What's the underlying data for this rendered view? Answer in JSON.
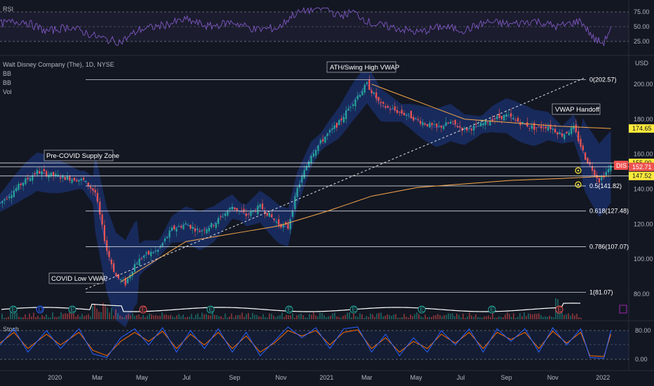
{
  "symbol": {
    "name": "Walt Disney Company (The), 1D, NYSE",
    "ticker": "DIS"
  },
  "currency": "USD",
  "indicators": {
    "bb1": "BB",
    "bb2": "BB",
    "vol": "Vol",
    "rsi": "RSI",
    "stoch": "Stoch"
  },
  "colors": {
    "bg": "#131722",
    "candle_up": "#26a69a",
    "candle_down": "#ef5350",
    "bb_fill": "#1e3a8a",
    "vwap": "#f7a74a",
    "rsi_line": "#7e57c2",
    "stoch_k": "#2962ff",
    "stoch_d": "#ff6d00"
  },
  "chart_data": [
    {
      "type": "line",
      "title": "Walt Disney Company (The), 1D, NYSE",
      "x_labels": [
        "2020",
        "Mar",
        "May",
        "Jul",
        "Sep",
        "Nov",
        "2021",
        "Mar",
        "May",
        "Jul",
        "Sep",
        "Nov",
        "2022"
      ],
      "y_ticks": [
        80.0,
        100.0,
        120.0,
        140.0,
        160.0,
        180.0,
        200.0
      ],
      "ylim": [
        72,
        212
      ],
      "series": [
        {
          "name": "DIS",
          "values": [
            [
              0,
              132
            ],
            [
              0.5,
              144
            ],
            [
              0.8,
              150
            ],
            [
              1.3,
              147
            ],
            [
              1.8,
              145
            ],
            [
              2.05,
              138
            ],
            [
              2.3,
              105
            ],
            [
              2.5,
              90
            ],
            [
              2.7,
              86
            ],
            [
              2.9,
              97
            ],
            [
              3.1,
              102
            ],
            [
              3.4,
              105
            ],
            [
              3.7,
              117
            ],
            [
              4.0,
              120
            ],
            [
              4.3,
              116
            ],
            [
              4.6,
              120
            ],
            [
              5.0,
              130
            ],
            [
              5.3,
              125
            ],
            [
              5.6,
              130
            ],
            [
              6.0,
              120
            ],
            [
              6.2,
              118
            ],
            [
              6.4,
              140
            ],
            [
              6.7,
              160
            ],
            [
              7.0,
              170
            ],
            [
              7.3,
              178
            ],
            [
              7.6,
              190
            ],
            [
              7.9,
              200
            ],
            [
              8.2,
              188
            ],
            [
              8.5,
              185
            ],
            [
              8.8,
              182
            ],
            [
              9.1,
              178
            ],
            [
              9.4,
              175
            ],
            [
              9.7,
              178
            ],
            [
              10.0,
              174
            ],
            [
              10.3,
              176
            ],
            [
              10.6,
              180
            ],
            [
              10.9,
              182
            ],
            [
              11.2,
              178
            ],
            [
              11.5,
              175
            ],
            [
              11.8,
              176
            ],
            [
              12.1,
              171
            ],
            [
              12.35,
              175
            ],
            [
              12.6,
              158
            ],
            [
              12.9,
              145
            ],
            [
              13.15,
              152.71
            ]
          ]
        }
      ],
      "vwap": {
        "name": "VWAP",
        "values": [
          [
            2.6,
            87
          ],
          [
            4.0,
            110
          ],
          [
            6.0,
            119
          ],
          [
            7.0,
            127
          ],
          [
            8.0,
            136
          ],
          [
            9.0,
            141
          ],
          [
            10.0,
            143
          ],
          [
            11.0,
            145
          ],
          [
            12.0,
            146
          ],
          [
            13.15,
            147.52
          ]
        ]
      },
      "vwap_ath": {
        "name": "ATH VWAP",
        "values": [
          [
            8.0,
            200
          ],
          [
            9.0,
            190
          ],
          [
            10.0,
            180
          ],
          [
            11.0,
            178
          ],
          [
            12.0,
            176
          ],
          [
            13.15,
            174.65
          ]
        ]
      },
      "last_price": "152.71",
      "price_tags": [
        {
          "value": "174.65",
          "color": "#ffeb3b",
          "text_color": "#131722"
        },
        {
          "value": "155.00",
          "color": "#ffeb3b",
          "text_color": "#131722"
        },
        {
          "value": "152.71",
          "color": "#ef5350",
          "text_color": "#ffffff"
        },
        {
          "value": "147.52",
          "color": "#ffeb3b",
          "text_color": "#131722"
        }
      ],
      "fib_levels": [
        {
          "ratio": "0",
          "value": 202.57,
          "label": "0(202.57)"
        },
        {
          "ratio": "0.5",
          "value": 141.82,
          "label": "0.5(141.82)"
        },
        {
          "ratio": "0.618",
          "value": 127.48,
          "label": "0.618(127.48)"
        },
        {
          "ratio": "0.786",
          "value": 107.07,
          "label": "0.786(107.07)"
        },
        {
          "ratio": "1",
          "value": 81.07,
          "label": "1(81.07)"
        }
      ],
      "horizontal_levels": [
        155.0,
        152.71,
        147.52
      ],
      "annotations": [
        {
          "text": "ATH/Swing High VWAP"
        },
        {
          "text": "VWAP Handoff"
        },
        {
          "text": "Pre-COVID Supply Zone"
        },
        {
          "text": "COVID Low VWAP"
        }
      ]
    },
    {
      "type": "line",
      "title": "RSI",
      "y_ticks": [
        25.0,
        50.0,
        75.0
      ],
      "ylim": [
        15,
        85
      ],
      "series": [
        {
          "name": "RSI",
          "values": [
            [
              0,
              55
            ],
            [
              0.5,
              60
            ],
            [
              1.0,
              42
            ],
            [
              1.5,
              50
            ],
            [
              2.0,
              35
            ],
            [
              2.3,
              28
            ],
            [
              2.6,
              24
            ],
            [
              3.0,
              45
            ],
            [
              3.5,
              52
            ],
            [
              4.0,
              62
            ],
            [
              4.5,
              50
            ],
            [
              5.0,
              58
            ],
            [
              5.5,
              45
            ],
            [
              6.0,
              48
            ],
            [
              6.3,
              70
            ],
            [
              6.6,
              78
            ],
            [
              7.0,
              82
            ],
            [
              7.3,
              68
            ],
            [
              7.6,
              75
            ],
            [
              8.0,
              55
            ],
            [
              8.5,
              48
            ],
            [
              9.0,
              40
            ],
            [
              9.5,
              50
            ],
            [
              10.0,
              44
            ],
            [
              10.5,
              58
            ],
            [
              11.0,
              54
            ],
            [
              11.5,
              60
            ],
            [
              12.0,
              50
            ],
            [
              12.5,
              60
            ],
            [
              12.8,
              28
            ],
            [
              13.0,
              22
            ],
            [
              13.15,
              50
            ]
          ]
        }
      ]
    },
    {
      "type": "line",
      "title": "Stoch",
      "y_ticks": [
        0.0,
        80.0
      ],
      "ylim": [
        -8,
        100
      ],
      "series": [
        {
          "name": "%K",
          "values": [
            [
              0,
              40
            ],
            [
              0.3,
              85
            ],
            [
              0.6,
              20
            ],
            [
              1.0,
              80
            ],
            [
              1.3,
              30
            ],
            [
              1.7,
              85
            ],
            [
              2.0,
              15
            ],
            [
              2.3,
              5
            ],
            [
              2.6,
              60
            ],
            [
              2.9,
              85
            ],
            [
              3.2,
              40
            ],
            [
              3.5,
              88
            ],
            [
              3.8,
              20
            ],
            [
              4.1,
              80
            ],
            [
              4.4,
              30
            ],
            [
              4.7,
              85
            ],
            [
              5.0,
              20
            ],
            [
              5.3,
              75
            ],
            [
              5.6,
              10
            ],
            [
              5.9,
              50
            ],
            [
              6.2,
              90
            ],
            [
              6.5,
              60
            ],
            [
              6.8,
              88
            ],
            [
              7.1,
              30
            ],
            [
              7.4,
              85
            ],
            [
              7.7,
              90
            ],
            [
              8.0,
              20
            ],
            [
              8.3,
              70
            ],
            [
              8.6,
              10
            ],
            [
              8.9,
              60
            ],
            [
              9.2,
              20
            ],
            [
              9.5,
              80
            ],
            [
              9.8,
              40
            ],
            [
              10.1,
              85
            ],
            [
              10.4,
              20
            ],
            [
              10.7,
              85
            ],
            [
              11.0,
              50
            ],
            [
              11.3,
              85
            ],
            [
              11.6,
              20
            ],
            [
              11.9,
              88
            ],
            [
              12.2,
              40
            ],
            [
              12.5,
              85
            ],
            [
              12.7,
              5
            ],
            [
              13.0,
              3
            ],
            [
              13.15,
              80
            ]
          ]
        },
        {
          "name": "%D",
          "values": [
            [
              0,
              45
            ],
            [
              0.3,
              75
            ],
            [
              0.6,
              30
            ],
            [
              1.0,
              70
            ],
            [
              1.3,
              40
            ],
            [
              1.7,
              75
            ],
            [
              2.0,
              25
            ],
            [
              2.3,
              10
            ],
            [
              2.6,
              50
            ],
            [
              2.9,
              75
            ],
            [
              3.2,
              50
            ],
            [
              3.5,
              78
            ],
            [
              3.8,
              30
            ],
            [
              4.1,
              70
            ],
            [
              4.4,
              40
            ],
            [
              4.7,
              75
            ],
            [
              5.0,
              30
            ],
            [
              5.3,
              65
            ],
            [
              5.6,
              20
            ],
            [
              5.9,
              45
            ],
            [
              6.2,
              80
            ],
            [
              6.5,
              65
            ],
            [
              6.8,
              80
            ],
            [
              7.1,
              40
            ],
            [
              7.4,
              75
            ],
            [
              7.7,
              82
            ],
            [
              8.0,
              30
            ],
            [
              8.3,
              60
            ],
            [
              8.6,
              20
            ],
            [
              8.9,
              50
            ],
            [
              9.2,
              30
            ],
            [
              9.5,
              70
            ],
            [
              9.8,
              45
            ],
            [
              10.1,
              75
            ],
            [
              10.4,
              30
            ],
            [
              10.7,
              75
            ],
            [
              11.0,
              55
            ],
            [
              11.3,
              75
            ],
            [
              11.6,
              30
            ],
            [
              11.9,
              78
            ],
            [
              12.2,
              45
            ],
            [
              12.5,
              75
            ],
            [
              12.7,
              10
            ],
            [
              13.0,
              8
            ],
            [
              13.15,
              70
            ]
          ]
        }
      ]
    }
  ]
}
